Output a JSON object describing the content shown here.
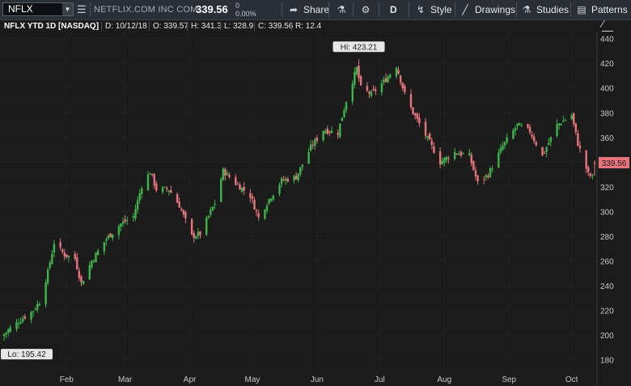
{
  "toolbar": {
    "symbol": "NFLX",
    "company": "NETFLIX.COM INC COM",
    "last": "339.56",
    "change_top": "0",
    "change_pct": "0.00%",
    "share_label": "Share",
    "aggregation_label": "D",
    "style_label": "Style",
    "drawings_label": "Drawings",
    "studies_label": "Studies",
    "patterns_label": "Patterns"
  },
  "info": {
    "title": "NFLX YTD 1D [NASDAQ]",
    "date": "D: 10/12/18",
    "open": "O: 339.57",
    "high": "H: 341.3",
    "low": "L: 328.9",
    "close": "C: 339.56",
    "range": "R: 12.4"
  },
  "colors": {
    "up": "#3fb44a",
    "down": "#e8747c",
    "background": "#1b1b1b",
    "price_tag": "#e8747c"
  },
  "chart_data": {
    "type": "candlestick",
    "title": "NFLX YTD 1D [NASDAQ]",
    "ylim": [
      170,
      445
    ],
    "yticks": [
      180,
      200,
      220,
      240,
      260,
      280,
      300,
      320,
      340,
      360,
      380,
      400,
      420,
      440
    ],
    "xticks": [
      "Feb",
      "Mar",
      "Apr",
      "May",
      "Jun",
      "Jul",
      "Aug",
      "Sep",
      "Oct"
    ],
    "x_start": "2018-01-02",
    "x_end": "2018-10-12",
    "last_price_label": "339.56",
    "hi_label": "Hi: 423.21",
    "lo_label": "Lo: 195.42",
    "hi_value": 423.21,
    "lo_value": 195.42,
    "grid": true,
    "close_keypoints": [
      [
        "2018-01-02",
        201
      ],
      [
        "2018-01-08",
        210
      ],
      [
        "2018-01-16",
        220
      ],
      [
        "2018-01-19",
        227
      ],
      [
        "2018-01-23",
        251
      ],
      [
        "2018-01-26",
        275
      ],
      [
        "2018-01-31",
        265
      ],
      [
        "2018-02-05",
        262
      ],
      [
        "2018-02-08",
        242
      ],
      [
        "2018-02-13",
        260
      ],
      [
        "2018-02-20",
        278
      ],
      [
        "2018-02-27",
        290
      ],
      [
        "2018-03-05",
        296
      ],
      [
        "2018-03-09",
        321
      ],
      [
        "2018-03-13",
        332
      ],
      [
        "2018-03-16",
        318
      ],
      [
        "2018-03-22",
        318
      ],
      [
        "2018-03-27",
        305
      ],
      [
        "2018-04-02",
        280
      ],
      [
        "2018-04-06",
        282
      ],
      [
        "2018-04-13",
        307
      ],
      [
        "2018-04-17",
        333
      ],
      [
        "2018-04-23",
        323
      ],
      [
        "2018-04-30",
        313
      ],
      [
        "2018-05-04",
        295
      ],
      [
        "2018-05-09",
        310
      ],
      [
        "2018-05-15",
        325
      ],
      [
        "2018-05-22",
        328
      ],
      [
        "2018-05-29",
        352
      ],
      [
        "2018-06-04",
        366
      ],
      [
        "2018-06-11",
        364
      ],
      [
        "2018-06-15",
        390
      ],
      [
        "2018-06-20",
        416
      ],
      [
        "2018-06-22",
        400
      ],
      [
        "2018-06-27",
        395
      ],
      [
        "2018-07-03",
        405
      ],
      [
        "2018-07-09",
        418
      ],
      [
        "2018-07-13",
        395
      ],
      [
        "2018-07-17",
        380
      ],
      [
        "2018-07-23",
        362
      ],
      [
        "2018-07-30",
        340
      ],
      [
        "2018-08-06",
        348
      ],
      [
        "2018-08-13",
        345
      ],
      [
        "2018-08-17",
        323
      ],
      [
        "2018-08-22",
        330
      ],
      [
        "2018-08-29",
        353
      ],
      [
        "2018-09-05",
        370
      ],
      [
        "2018-09-11",
        365
      ],
      [
        "2018-09-17",
        345
      ],
      [
        "2018-09-24",
        370
      ],
      [
        "2018-10-01",
        378
      ],
      [
        "2018-10-04",
        355
      ],
      [
        "2018-10-09",
        330
      ],
      [
        "2018-10-11",
        328
      ],
      [
        "2018-10-12",
        339.56
      ]
    ]
  }
}
